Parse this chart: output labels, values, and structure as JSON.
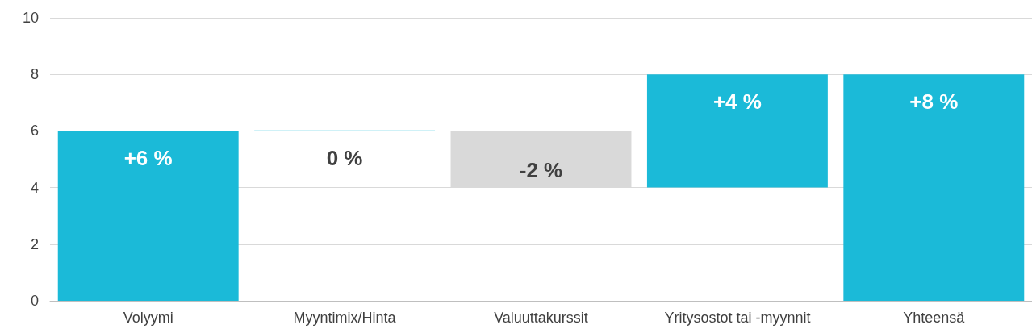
{
  "chart_data": {
    "type": "bar",
    "categories": [
      "Volyymi",
      "Myyntimix/Hinta",
      "Valuuttakurssit",
      "Yritysostot tai -myynnit",
      "Yhteensä"
    ],
    "values": [
      6,
      0,
      -2,
      4,
      8
    ],
    "base": [
      0,
      6,
      6,
      4,
      0
    ],
    "colors": [
      "#1bbad8",
      "#1bbad8",
      "#d9d9d9",
      "#1bbad8",
      "#1bbad8"
    ],
    "value_labels": [
      "+6 %",
      "0 %",
      "-2 %",
      "+4 %",
      "+8 %"
    ],
    "ylim": [
      0,
      10
    ],
    "yticks": [
      0,
      2,
      4,
      6,
      8,
      10
    ],
    "grid": "y"
  }
}
